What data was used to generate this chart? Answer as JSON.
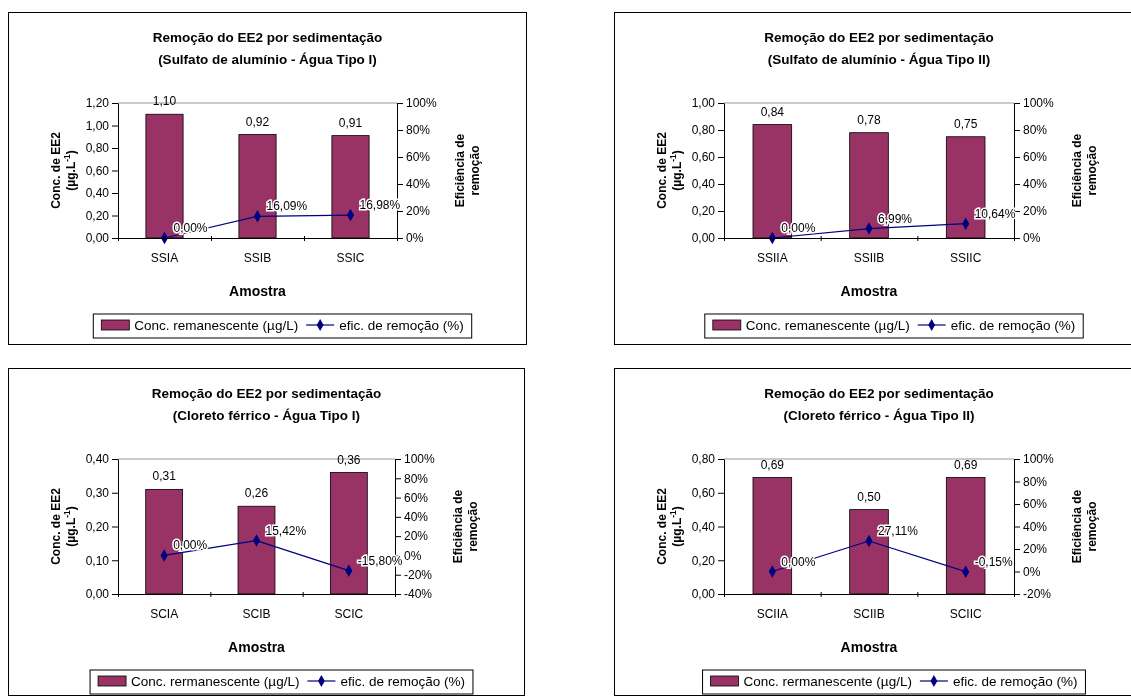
{
  "chart_data": [
    {
      "type": "bar",
      "title": "Remoção do EE2 por sedimentação\n(Sulfato de alumínio - Água Tipo I)",
      "xlabel": "Amostra",
      "ylabel": "Conc. de EE2\n(µg.L$^{-1}$)",
      "y2label": "Eficiência de\nremoção",
      "legend": "bottom",
      "categories": [
        "SSIA",
        "SSIB",
        "SSIC"
      ],
      "series": [
        {
          "name": "Conc. remanescente (µg/L)",
          "color": "#993366",
          "values": [
            1.1,
            0.92,
            0.91
          ],
          "value_labels": [
            "1,10",
            "0,92",
            "0,91"
          ]
        },
        {
          "name": "efic. de remoção (%)",
          "type": "line",
          "axis": "y2",
          "marker": "diamond",
          "color": "#000080",
          "values": [
            0,
            16.09,
            16.98
          ],
          "value_labels": [
            "0,00%",
            "16,09%",
            "16,98%"
          ]
        }
      ],
      "ylim": [
        0,
        1.2
      ],
      "yticks": [
        {
          "value": 0,
          "label": "0,00"
        },
        {
          "value": 0.2,
          "label": "0,20"
        },
        {
          "value": 0.4,
          "label": "0,40"
        },
        {
          "value": 0.6,
          "label": "0,60"
        },
        {
          "value": 0.8,
          "label": "0,80"
        },
        {
          "value": 1.0,
          "label": "1,00"
        },
        {
          "value": 1.2,
          "label": "1,20"
        }
      ],
      "y2lim": [
        0,
        100
      ],
      "y2ticks": [
        {
          "value": 0,
          "label": "0%"
        },
        {
          "value": 20,
          "label": "20%"
        },
        {
          "value": 40,
          "label": "40%"
        },
        {
          "value": 60,
          "label": "60%"
        },
        {
          "value": 80,
          "label": "80%"
        },
        {
          "value": 100,
          "label": "100%"
        }
      ]
    },
    {
      "type": "bar",
      "title": "Remoção do EE2 por sedimentação\n(Sulfato de alumínio - Água Tipo II)",
      "xlabel": "Amostra",
      "ylabel": "Conc. de EE2\n(µg.L$^{-1}$)",
      "y2label": "Eficiência de\nremoção",
      "legend": "bottom",
      "categories": [
        "SSIIA",
        "SSIIB",
        "SSIIC"
      ],
      "series": [
        {
          "name": "Conc. remanescente (µg/L)",
          "color": "#993366",
          "values": [
            0.84,
            0.78,
            0.75
          ],
          "value_labels": [
            "0,84",
            "0,78",
            "0,75"
          ]
        },
        {
          "name": "efic. de remoção (%)",
          "type": "line",
          "axis": "y2",
          "marker": "diamond",
          "color": "#000080",
          "values": [
            0,
            6.99,
            10.64
          ],
          "value_labels": [
            "0,00%",
            "6,99%",
            "10,64%"
          ]
        }
      ],
      "ylim": [
        0,
        1.0
      ],
      "yticks": [
        {
          "value": 0,
          "label": "0,00"
        },
        {
          "value": 0.2,
          "label": "0,20"
        },
        {
          "value": 0.4,
          "label": "0,40"
        },
        {
          "value": 0.6,
          "label": "0,60"
        },
        {
          "value": 0.8,
          "label": "0,80"
        },
        {
          "value": 1.0,
          "label": "1,00"
        }
      ],
      "y2lim": [
        0,
        100
      ],
      "y2ticks": [
        {
          "value": 0,
          "label": "0%"
        },
        {
          "value": 20,
          "label": "20%"
        },
        {
          "value": 40,
          "label": "40%"
        },
        {
          "value": 60,
          "label": "60%"
        },
        {
          "value": 80,
          "label": "80%"
        },
        {
          "value": 100,
          "label": "100%"
        }
      ]
    },
    {
      "type": "bar",
      "title": "Remoção do EE2 por sedimentação\n(Cloreto férrico - Água Tipo I)",
      "xlabel": "Amostra",
      "ylabel": "Conc. de EE2\n(µg.L$^{-1}$)",
      "y2label": "Eficiência de\nremoção",
      "legend": "bottom",
      "categories": [
        "SCIA",
        "SCIB",
        "SCIC"
      ],
      "series": [
        {
          "name": "Conc. rermanescente (µg/L)",
          "color": "#993366",
          "values": [
            0.31,
            0.26,
            0.36
          ],
          "value_labels": [
            "0,31",
            "0,26",
            "0,36"
          ]
        },
        {
          "name": "efic. de remoção (%)",
          "type": "line",
          "axis": "y2",
          "marker": "diamond",
          "color": "#000080",
          "values": [
            0,
            15.42,
            -15.8
          ],
          "value_labels": [
            "0,00%",
            "15,42%",
            "-15,80%"
          ]
        }
      ],
      "ylim": [
        0,
        0.4
      ],
      "yticks": [
        {
          "value": 0,
          "label": "0,00"
        },
        {
          "value": 0.1,
          "label": "0,10"
        },
        {
          "value": 0.2,
          "label": "0,20"
        },
        {
          "value": 0.3,
          "label": "0,30"
        },
        {
          "value": 0.4,
          "label": "0,40"
        }
      ],
      "y2lim": [
        -40,
        100
      ],
      "y2ticks": [
        {
          "value": -40,
          "label": "-40%"
        },
        {
          "value": -20,
          "label": "-20%"
        },
        {
          "value": 0,
          "label": "0%"
        },
        {
          "value": 20,
          "label": "20%"
        },
        {
          "value": 40,
          "label": "40%"
        },
        {
          "value": 60,
          "label": "60%"
        },
        {
          "value": 80,
          "label": "80%"
        },
        {
          "value": 100,
          "label": "100%"
        }
      ]
    },
    {
      "type": "bar",
      "title": "Remoção do EE2 por sedimentação\n(Cloreto férrico - Água Tipo II)",
      "xlabel": "Amostra",
      "ylabel": "Conc. de EE2\n(µg.L$^{-1}$)",
      "y2label": "Eficiência de\nremoção",
      "legend": "bottom",
      "categories": [
        "SCIIA",
        "SCIIB",
        "SCIIC"
      ],
      "series": [
        {
          "name": "Conc. rermanescente (µg/L)",
          "color": "#993366",
          "values": [
            0.69,
            0.5,
            0.69
          ],
          "value_labels": [
            "0,69",
            "0,50",
            "0,69"
          ]
        },
        {
          "name": "efic. de remoção (%)",
          "type": "line",
          "axis": "y2",
          "marker": "diamond",
          "color": "#000080",
          "values": [
            0,
            27.11,
            -0.15
          ],
          "value_labels": [
            "0,00%",
            "27,11%",
            "-0,15%"
          ]
        }
      ],
      "ylim": [
        0,
        0.8
      ],
      "yticks": [
        {
          "value": 0,
          "label": "0,00"
        },
        {
          "value": 0.2,
          "label": "0,20"
        },
        {
          "value": 0.4,
          "label": "0,40"
        },
        {
          "value": 0.6,
          "label": "0,60"
        },
        {
          "value": 0.8,
          "label": "0,80"
        }
      ],
      "y2lim": [
        -20,
        100
      ],
      "y2ticks": [
        {
          "value": -20,
          "label": "-20%"
        },
        {
          "value": 0,
          "label": "0%"
        },
        {
          "value": 20,
          "label": "20%"
        },
        {
          "value": 40,
          "label": "40%"
        },
        {
          "value": 60,
          "label": "60%"
        },
        {
          "value": 80,
          "label": "80%"
        },
        {
          "value": 100,
          "label": "100%"
        }
      ]
    }
  ]
}
